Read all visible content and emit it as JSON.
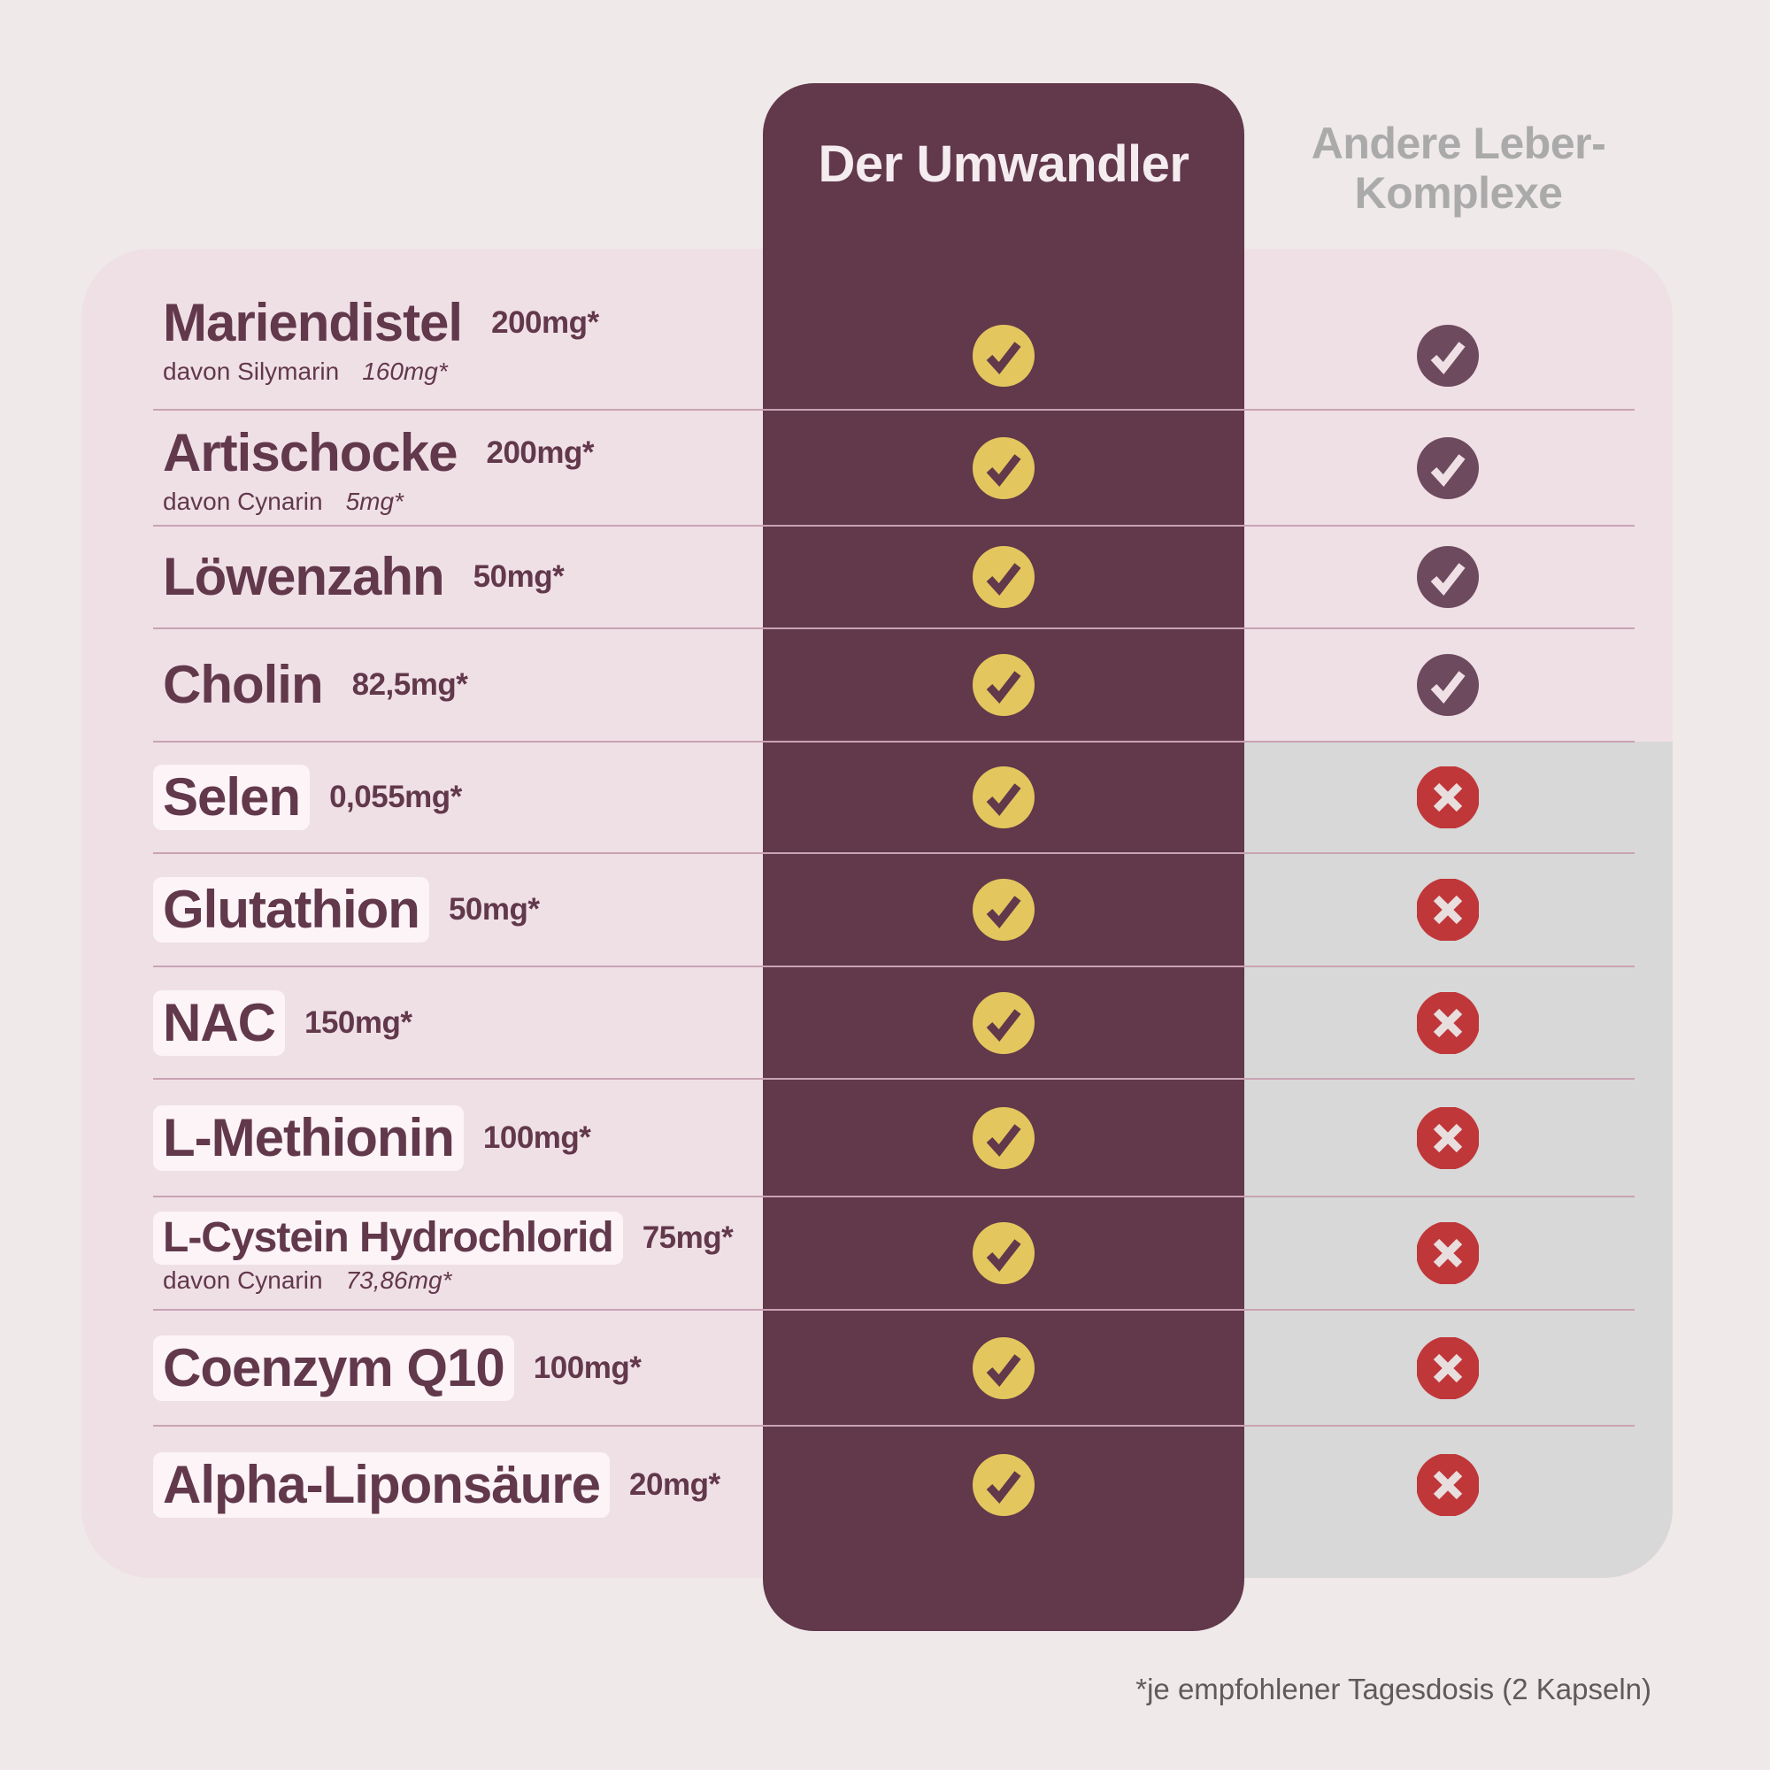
{
  "header": {
    "product": "Der Umwandler",
    "competitor_line1": "Andere Leber-",
    "competitor_line2": "Komplexe"
  },
  "colors": {
    "background": "#efe9e9",
    "panel": "#efe0e6",
    "product_column": "#62384b",
    "missing_area": "#d8d8d8",
    "check_yes": "#e3c75e",
    "check_other": "#6e4a5e",
    "cross": "#c0373a",
    "text": "#62384b"
  },
  "rows": [
    {
      "name": "Mariendistel",
      "dose": "200mg*",
      "sub_label": "davon Silymarin",
      "sub_dose": "160mg*",
      "highlight": false,
      "product": "check-icon",
      "other": "check-icon"
    },
    {
      "name": "Artischocke",
      "dose": "200mg*",
      "sub_label": "davon Cynarin",
      "sub_dose": "5mg*",
      "highlight": false,
      "product": "check-icon",
      "other": "check-icon"
    },
    {
      "name": "Löwenzahn",
      "dose": "50mg*",
      "highlight": false,
      "product": "check-icon",
      "other": "check-icon"
    },
    {
      "name": "Cholin",
      "dose": "82,5mg*",
      "highlight": false,
      "product": "check-icon",
      "other": "check-icon"
    },
    {
      "name": "Selen",
      "dose": "0,055mg*",
      "highlight": true,
      "product": "check-icon",
      "other": "cross-icon"
    },
    {
      "name": "Glutathion",
      "dose": "50mg*",
      "highlight": true,
      "product": "check-icon",
      "other": "cross-icon"
    },
    {
      "name": "NAC",
      "dose": "150mg*",
      "highlight": true,
      "product": "check-icon",
      "other": "cross-icon"
    },
    {
      "name": "L-Methionin",
      "dose": "100mg*",
      "highlight": true,
      "product": "check-icon",
      "other": "cross-icon"
    },
    {
      "name": "L-Cystein Hydrochlorid",
      "dose": "75mg*",
      "sub_label": "davon Cynarin",
      "sub_dose": "73,86mg*",
      "highlight": true,
      "small": true,
      "product": "check-icon",
      "other": "cross-icon"
    },
    {
      "name": "Coenzym Q10",
      "dose": "100mg*",
      "highlight": true,
      "product": "check-icon",
      "other": "cross-icon"
    },
    {
      "name": "Alpha-Liponsäure",
      "dose": "20mg*",
      "highlight": true,
      "product": "check-icon",
      "other": "cross-icon"
    }
  ],
  "footnote": "*je empfohlener Tagesdosis (2 Kapseln)"
}
